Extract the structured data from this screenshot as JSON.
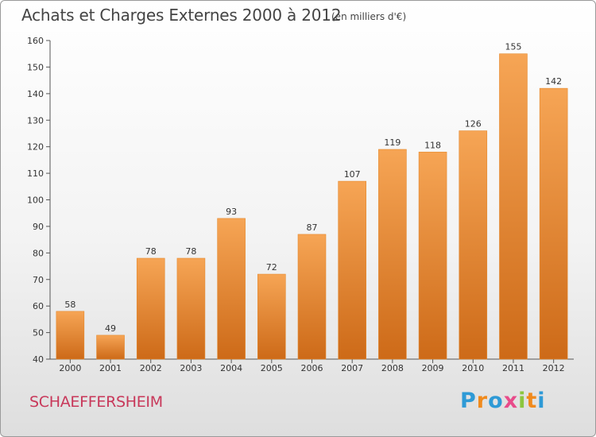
{
  "title": "Achats et Charges Externes 2000 à 2012",
  "subtitle": "(en milliers d'€)",
  "commune": "SCHAEFFERSHEIM",
  "logo": {
    "letters": [
      "P",
      "r",
      "o",
      "x",
      "i",
      "t",
      "i"
    ],
    "colors": [
      "#2e9ad6",
      "#f08a1c",
      "#2e9ad6",
      "#e84b8a",
      "#8cc63f",
      "#f08a1c",
      "#2e9ad6"
    ]
  },
  "colors": {
    "bar_top": "#f6a555",
    "bar_bottom": "#cd6a18",
    "title": "#444444",
    "commune": "#c8385a"
  },
  "chart_data": {
    "type": "bar",
    "categories": [
      "2000",
      "2001",
      "2002",
      "2003",
      "2004",
      "2005",
      "2006",
      "2007",
      "2008",
      "2009",
      "2010",
      "2011",
      "2012"
    ],
    "values": [
      58,
      49,
      78,
      78,
      93,
      72,
      87,
      107,
      119,
      118,
      126,
      155,
      142
    ],
    "title": "Achats et Charges Externes 2000 à 2012",
    "xlabel": "",
    "ylabel": "",
    "ylim": [
      40,
      160
    ],
    "yticks": [
      40,
      50,
      60,
      70,
      80,
      90,
      100,
      110,
      120,
      130,
      140,
      150,
      160
    ],
    "grid": false,
    "legend": "none",
    "data_labels": true
  }
}
